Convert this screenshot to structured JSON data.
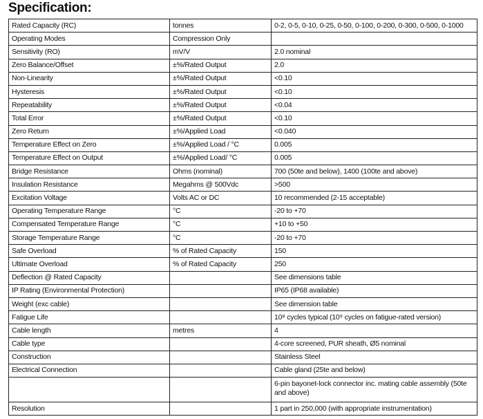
{
  "title": "Specification:",
  "rows": [
    [
      "Rated Capacity (RC)",
      "tonnes",
      "0-2, 0-5, 0-10, 0-25, 0-50, 0-100, 0-200, 0-300, 0-500, 0-1000"
    ],
    [
      "Operating Modes",
      "Compression Only",
      ""
    ],
    [
      "Sensitivity (RO)",
      "mV/V",
      "2.0 nominal"
    ],
    [
      "Zero Balance/Offset",
      "±%/Rated Output",
      "2.0"
    ],
    [
      "Non-Linearity",
      "±%/Rated Output",
      "<0.10"
    ],
    [
      "Hysteresis",
      "±%/Rated Output",
      "<0.10"
    ],
    [
      "Repeatability",
      "±%/Rated Output",
      "<0.04"
    ],
    [
      "Total Error",
      "±%/Rated Output",
      "<0.10"
    ],
    [
      "Zero Return",
      "±%/Applied Load",
      "<0.040"
    ],
    [
      "Temperature Effect on Zero",
      "±%/Applied Load / °C",
      "0.005"
    ],
    [
      "Temperature Effect on Output",
      "±%/Applied Load/ °C",
      "0.005"
    ],
    [
      "Bridge Resistance",
      "Ohms (nominal)",
      "700 (50te and below), 1400 (100te and above)"
    ],
    [
      "Insulation Resistance",
      "Megahms @ 500Vdc",
      ">500"
    ],
    [
      "Excitation Voltage",
      "Volts AC or DC",
      "10 recommended (2-15 acceptable)"
    ],
    [
      "Operating Temperature Range",
      "°C",
      "-20 to +70"
    ],
    [
      "Compensated Temperature Range",
      "°C",
      "+10 to +50"
    ],
    [
      "Storage Temperature Range",
      "°C",
      "-20 to +70"
    ],
    [
      "Safe Overload",
      "% of Rated Capacity",
      "150"
    ],
    [
      "Ultimate Overload",
      "% of Rated Capacity",
      "250"
    ],
    [
      "Deflection @ Rated Capacity",
      "",
      "See dimensions table"
    ],
    [
      "IP Rating (Environmental Protection)",
      "",
      "IP65 (IP68 available)"
    ],
    [
      "Weight (exc cable)",
      "",
      "See dimension table"
    ],
    [
      "Fatigue Life",
      "",
      "10⁸ cycles typical (10⁹ cycles on fatigue-rated version)"
    ],
    [
      "Cable length",
      "metres",
      "4"
    ],
    [
      "Cable type",
      "",
      "4-core screened, PUR sheath, Ø5 nominal"
    ],
    [
      "Construction",
      "",
      "Stainless Steel"
    ],
    [
      "Electrical Connection",
      "",
      "Cable gland (25te and below)"
    ],
    [
      "",
      "",
      "6-pin bayonet-lock connector inc. mating cable assembly (50te and above)"
    ],
    [
      "Resolution",
      "",
      "1 part in 250,000 (with appropriate instrumentation)"
    ]
  ]
}
